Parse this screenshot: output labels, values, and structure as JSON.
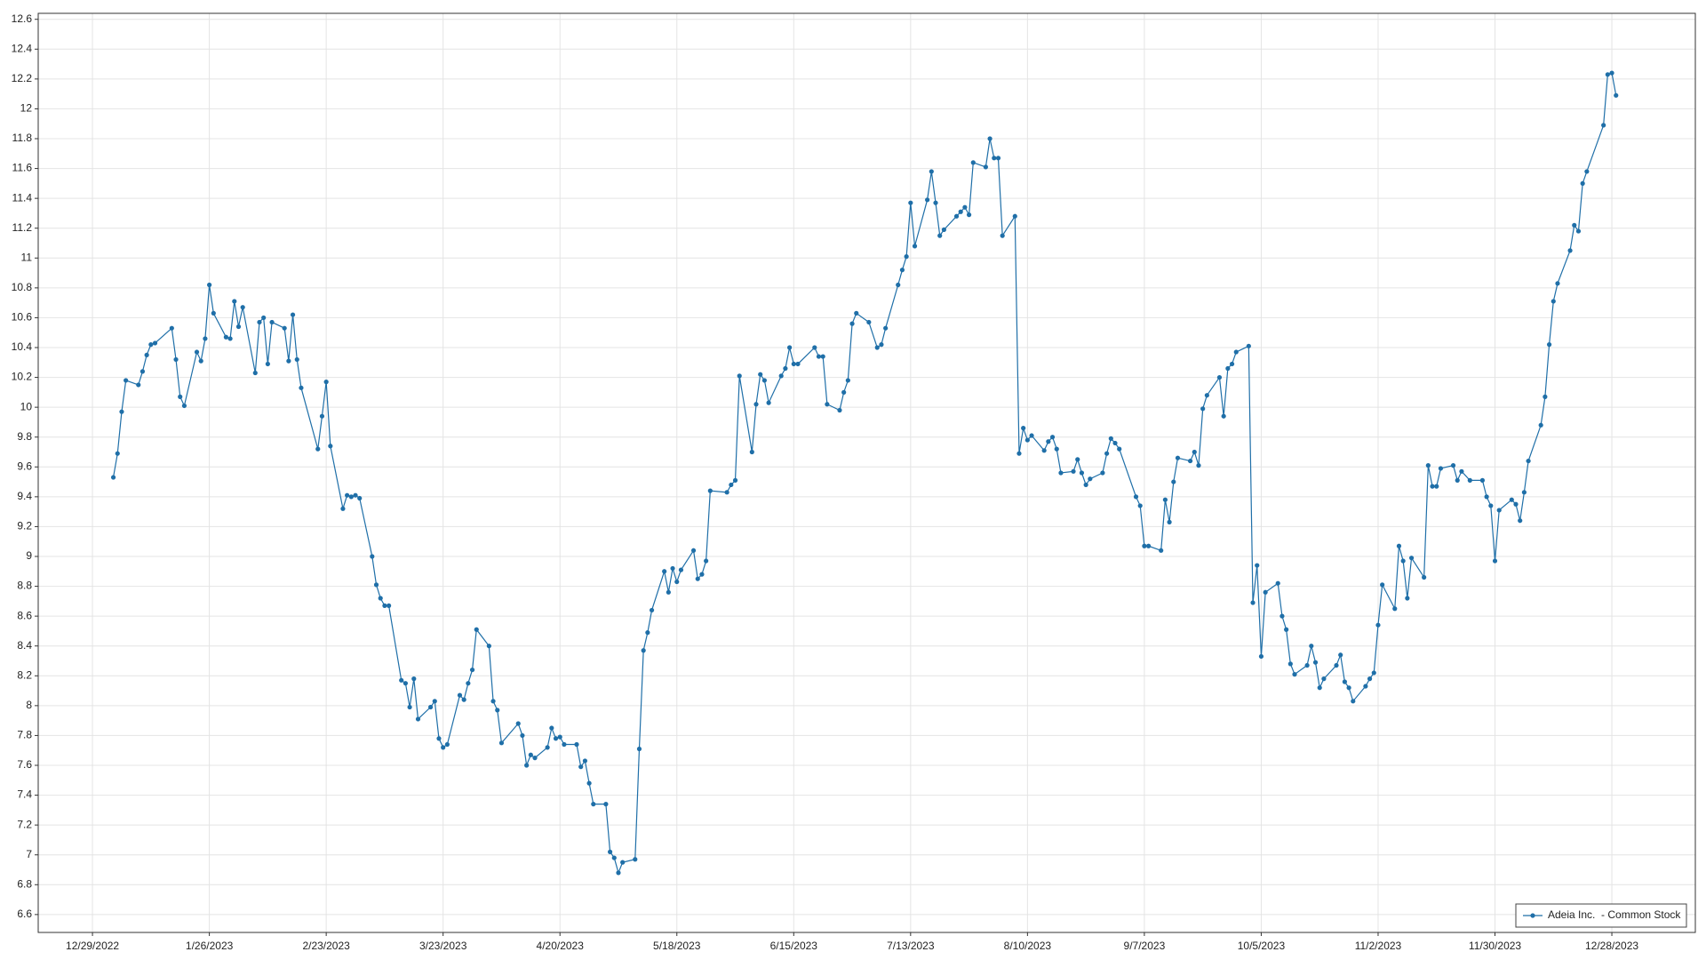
{
  "chart_data": {
    "type": "line",
    "x": [
      "1/3/2023",
      "1/4/2023",
      "1/5/2023",
      "1/6/2023",
      "1/9/2023",
      "1/10/2023",
      "1/11/2023",
      "1/12/2023",
      "1/13/2023",
      "1/17/2023",
      "1/18/2023",
      "1/19/2023",
      "1/20/2023",
      "1/23/2023",
      "1/24/2023",
      "1/25/2023",
      "1/26/2023",
      "1/27/2023",
      "1/30/2023",
      "1/31/2023",
      "2/1/2023",
      "2/2/2023",
      "2/3/2023",
      "2/6/2023",
      "2/7/2023",
      "2/8/2023",
      "2/9/2023",
      "2/10/2023",
      "2/13/2023",
      "2/14/2023",
      "2/15/2023",
      "2/16/2023",
      "2/17/2023",
      "2/21/2023",
      "2/22/2023",
      "2/23/2023",
      "2/24/2023",
      "2/27/2023",
      "2/28/2023",
      "3/1/2023",
      "3/2/2023",
      "3/3/2023",
      "3/6/2023",
      "3/7/2023",
      "3/8/2023",
      "3/9/2023",
      "3/10/2023",
      "3/13/2023",
      "3/14/2023",
      "3/15/2023",
      "3/16/2023",
      "3/17/2023",
      "3/20/2023",
      "3/21/2023",
      "3/22/2023",
      "3/23/2023",
      "3/24/2023",
      "3/27/2023",
      "3/28/2023",
      "3/29/2023",
      "3/30/2023",
      "3/31/2023",
      "4/3/2023",
      "4/4/2023",
      "4/5/2023",
      "4/6/2023",
      "4/10/2023",
      "4/11/2023",
      "4/12/2023",
      "4/13/2023",
      "4/14/2023",
      "4/17/2023",
      "4/18/2023",
      "4/19/2023",
      "4/20/2023",
      "4/21/2023",
      "4/24/2023",
      "4/25/2023",
      "4/26/2023",
      "4/27/2023",
      "4/28/2023",
      "5/1/2023",
      "5/2/2023",
      "5/3/2023",
      "5/4/2023",
      "5/5/2023",
      "5/8/2023",
      "5/9/2023",
      "5/10/2023",
      "5/11/2023",
      "5/12/2023",
      "5/15/2023",
      "5/16/2023",
      "5/17/2023",
      "5/18/2023",
      "5/19/2023",
      "5/22/2023",
      "5/23/2023",
      "5/24/2023",
      "5/25/2023",
      "5/26/2023",
      "5/30/2023",
      "5/31/2023",
      "6/1/2023",
      "6/2/2023",
      "6/5/2023",
      "6/6/2023",
      "6/7/2023",
      "6/8/2023",
      "6/9/2023",
      "6/12/2023",
      "6/13/2023",
      "6/14/2023",
      "6/15/2023",
      "6/16/2023",
      "6/20/2023",
      "6/21/2023",
      "6/22/2023",
      "6/23/2023",
      "6/26/2023",
      "6/27/2023",
      "6/28/2023",
      "6/29/2023",
      "6/30/2023",
      "7/3/2023",
      "7/5/2023",
      "7/6/2023",
      "7/7/2023",
      "7/10/2023",
      "7/11/2023",
      "7/12/2023",
      "7/13/2023",
      "7/14/2023",
      "7/17/2023",
      "7/18/2023",
      "7/19/2023",
      "7/20/2023",
      "7/21/2023",
      "7/24/2023",
      "7/25/2023",
      "7/26/2023",
      "7/27/2023",
      "7/28/2023",
      "7/31/2023",
      "8/1/2023",
      "8/2/2023",
      "8/3/2023",
      "8/4/2023",
      "8/7/2023",
      "8/8/2023",
      "8/9/2023",
      "8/10/2023",
      "8/11/2023",
      "8/14/2023",
      "8/15/2023",
      "8/16/2023",
      "8/17/2023",
      "8/18/2023",
      "8/21/2023",
      "8/22/2023",
      "8/23/2023",
      "8/24/2023",
      "8/25/2023",
      "8/28/2023",
      "8/29/2023",
      "8/30/2023",
      "8/31/2023",
      "9/1/2023",
      "9/5/2023",
      "9/6/2023",
      "9/7/2023",
      "9/8/2023",
      "9/11/2023",
      "9/12/2023",
      "9/13/2023",
      "9/14/2023",
      "9/15/2023",
      "9/18/2023",
      "9/19/2023",
      "9/20/2023",
      "9/21/2023",
      "9/22/2023",
      "9/25/2023",
      "9/26/2023",
      "9/27/2023",
      "9/28/2023",
      "9/29/2023",
      "10/2/2023",
      "10/3/2023",
      "10/4/2023",
      "10/5/2023",
      "10/6/2023",
      "10/9/2023",
      "10/10/2023",
      "10/11/2023",
      "10/12/2023",
      "10/13/2023",
      "10/16/2023",
      "10/17/2023",
      "10/18/2023",
      "10/19/2023",
      "10/20/2023",
      "10/23/2023",
      "10/24/2023",
      "10/25/2023",
      "10/26/2023",
      "10/27/2023",
      "10/30/2023",
      "10/31/2023",
      "11/1/2023",
      "11/2/2023",
      "11/3/2023",
      "11/6/2023",
      "11/7/2023",
      "11/8/2023",
      "11/9/2023",
      "11/10/2023",
      "11/13/2023",
      "11/14/2023",
      "11/15/2023",
      "11/16/2023",
      "11/17/2023",
      "11/20/2023",
      "11/21/2023",
      "11/22/2023",
      "11/24/2023",
      "11/27/2023",
      "11/28/2023",
      "11/29/2023",
      "11/30/2023",
      "12/1/2023",
      "12/4/2023",
      "12/5/2023",
      "12/6/2023",
      "12/7/2023",
      "12/8/2023",
      "12/11/2023",
      "12/12/2023",
      "12/13/2023",
      "12/14/2023",
      "12/15/2023",
      "12/18/2023",
      "12/19/2023",
      "12/20/2023",
      "12/21/2023",
      "12/22/2023",
      "12/26/2023",
      "12/27/2023",
      "12/28/2023",
      "12/29/2023"
    ],
    "series": [
      {
        "name": "Adeia Inc.  - Common Stock",
        "color": "#1f6fa8",
        "values": [
          9.53,
          9.69,
          9.97,
          10.18,
          10.15,
          10.24,
          10.35,
          10.42,
          10.43,
          10.53,
          10.32,
          10.07,
          10.01,
          10.37,
          10.31,
          10.46,
          10.82,
          10.63,
          10.47,
          10.46,
          10.71,
          10.54,
          10.67,
          10.23,
          10.57,
          10.6,
          10.29,
          10.57,
          10.53,
          10.31,
          10.62,
          10.32,
          10.13,
          9.72,
          9.94,
          10.17,
          9.74,
          9.32,
          9.41,
          9.4,
          9.41,
          9.39,
          9.0,
          8.81,
          8.72,
          8.67,
          8.67,
          8.17,
          8.15,
          7.99,
          8.18,
          7.91,
          7.99,
          8.03,
          7.78,
          7.72,
          7.74,
          8.07,
          8.04,
          8.15,
          8.24,
          8.51,
          8.4,
          8.03,
          7.97,
          7.75,
          7.88,
          7.8,
          7.6,
          7.67,
          7.65,
          7.72,
          7.85,
          7.78,
          7.79,
          7.74,
          7.74,
          7.59,
          7.63,
          7.48,
          7.34,
          7.34,
          7.02,
          6.98,
          6.88,
          6.95,
          6.97,
          7.71,
          8.37,
          8.49,
          8.64,
          8.9,
          8.76,
          8.92,
          8.83,
          8.91,
          9.04,
          8.85,
          8.88,
          8.97,
          9.44,
          9.43,
          9.48,
          9.51,
          10.21,
          9.7,
          10.02,
          10.22,
          10.18,
          10.03,
          10.21,
          10.26,
          10.4,
          10.29,
          10.29,
          10.4,
          10.34,
          10.34,
          10.02,
          9.98,
          10.1,
          10.18,
          10.56,
          10.63,
          10.57,
          10.4,
          10.42,
          10.53,
          10.82,
          10.92,
          11.01,
          11.37,
          11.08,
          11.39,
          11.58,
          11.37,
          11.15,
          11.19,
          11.28,
          11.31,
          11.34,
          11.29,
          11.64,
          11.61,
          11.8,
          11.67,
          11.67,
          11.15,
          11.28,
          9.69,
          9.86,
          9.78,
          9.81,
          9.71,
          9.77,
          9.8,
          9.72,
          9.56,
          9.57,
          9.65,
          9.56,
          9.48,
          9.52,
          9.56,
          9.69,
          9.79,
          9.76,
          9.72,
          9.4,
          9.34,
          9.07,
          9.07,
          9.04,
          9.38,
          9.23,
          9.5,
          9.66,
          9.64,
          9.7,
          9.61,
          9.99,
          10.08,
          10.2,
          9.94,
          10.26,
          10.29,
          10.37,
          10.41,
          8.69,
          8.94,
          8.33,
          8.76,
          8.82,
          8.6,
          8.51,
          8.28,
          8.21,
          8.27,
          8.4,
          8.29,
          8.12,
          8.18,
          8.27,
          8.34,
          8.16,
          8.12,
          8.03,
          8.13,
          8.18,
          8.22,
          8.54,
          8.81,
          8.65,
          9.07,
          8.97,
          8.72,
          8.99,
          8.86,
          9.61,
          9.47,
          9.47,
          9.59,
          9.61,
          9.51,
          9.57,
          9.51,
          9.51,
          9.4,
          9.34,
          8.97,
          9.31,
          9.38,
          9.35,
          9.24,
          9.43,
          9.64,
          9.88,
          10.07,
          10.42,
          10.71,
          10.83,
          11.05,
          11.22,
          11.18,
          11.5,
          11.58,
          11.89,
          12.23,
          12.24,
          12.09
        ]
      }
    ],
    "xlim": [
      "12/16/2022",
      "1/17/2024"
    ],
    "xticks": [
      "12/29/2022",
      "1/26/2023",
      "2/23/2023",
      "3/23/2023",
      "4/20/2023",
      "5/18/2023",
      "6/15/2023",
      "7/13/2023",
      "8/10/2023",
      "9/7/2023",
      "10/5/2023",
      "11/2/2023",
      "11/30/2023",
      "12/28/2023"
    ],
    "ylim": [
      6.48,
      12.64
    ],
    "yticks": [
      6.6,
      6.8,
      7,
      7.2,
      7.4,
      7.6,
      7.8,
      8,
      8.2,
      8.4,
      8.6,
      8.8,
      9,
      9.2,
      9.4,
      9.6,
      9.8,
      10,
      10.2,
      10.4,
      10.6,
      10.8,
      11,
      11.2,
      11.4,
      11.6,
      11.8,
      12,
      12.2,
      12.4,
      12.6
    ],
    "grid": true,
    "legend": "lower right",
    "markers": true
  }
}
